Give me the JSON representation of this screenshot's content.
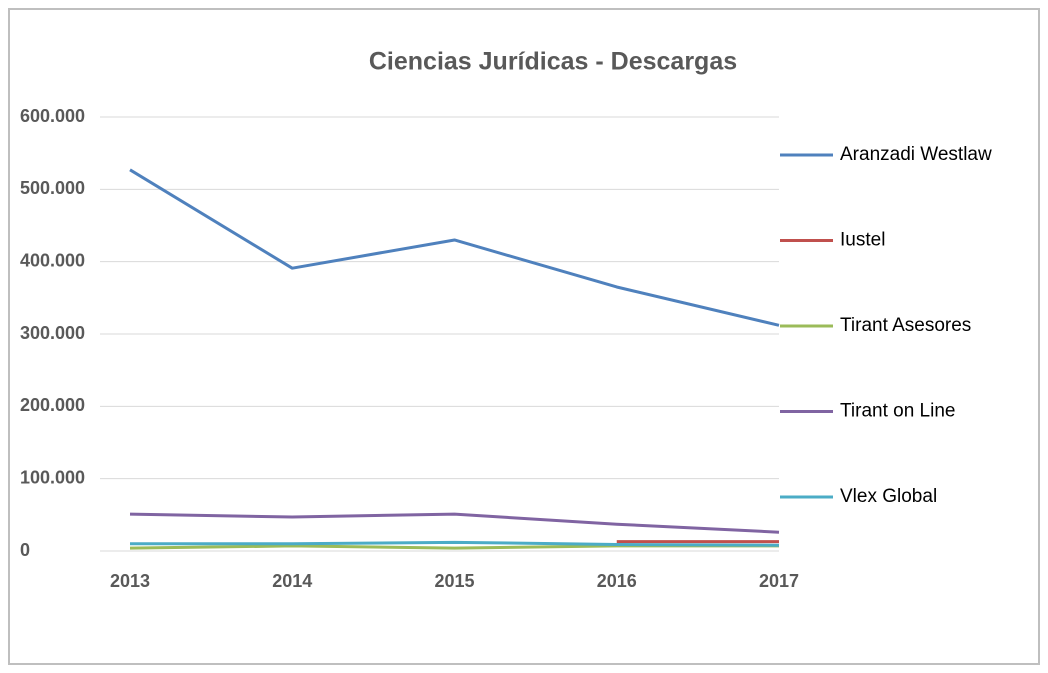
{
  "chart_data": {
    "type": "line",
    "title": "Ciencias Jurídicas - Descargas",
    "categories": [
      "2013",
      "2014",
      "2015",
      "2016",
      "2017"
    ],
    "series": [
      {
        "name": "Aranzadi Westlaw",
        "color": "#4f81bd",
        "values": [
          527000,
          391000,
          430000,
          365000,
          312000
        ]
      },
      {
        "name": "Iustel",
        "color": "#c0504d",
        "values": [
          null,
          null,
          null,
          13000,
          13000
        ]
      },
      {
        "name": "Tirant Asesores",
        "color": "#9bbb59",
        "values": [
          4000,
          7000,
          4000,
          7000,
          7000
        ]
      },
      {
        "name": "Tirant on Line",
        "color": "#8064a2",
        "values": [
          51000,
          47000,
          51000,
          37000,
          26000
        ]
      },
      {
        "name": "Vlex Global",
        "color": "#4bacc6",
        "values": [
          10000,
          10000,
          12000,
          9000,
          8000
        ]
      }
    ],
    "ylim": [
      0,
      600000
    ],
    "yticks": [
      0,
      {
        "value": 100000,
        "label": "100.000"
      },
      {
        "value": 200000,
        "label": "200.000"
      },
      {
        "value": 300000,
        "label": "300.000"
      },
      {
        "value": 400000,
        "label": "400.000"
      },
      {
        "value": 500000,
        "label": "500.000"
      },
      {
        "value": 600000,
        "label": "600.000"
      }
    ],
    "grid": true,
    "legend": "right"
  }
}
